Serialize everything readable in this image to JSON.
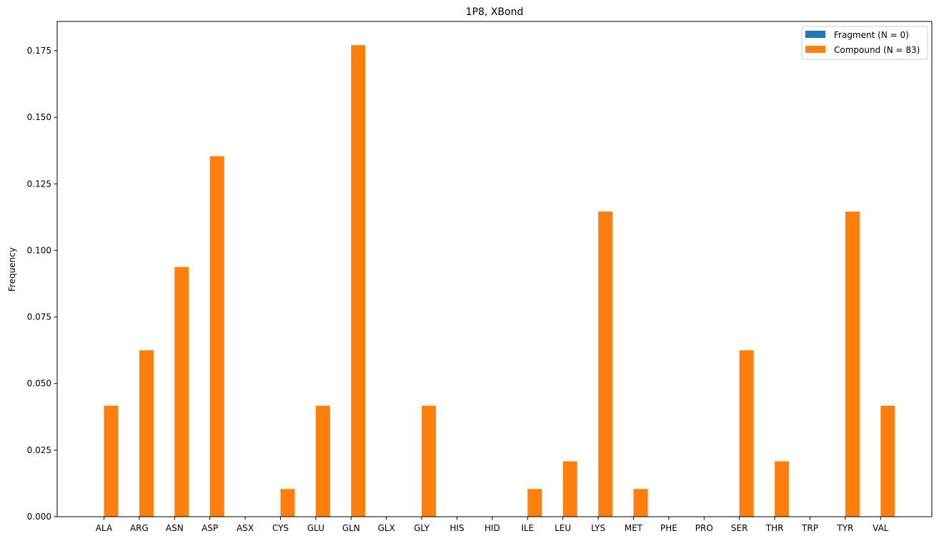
{
  "chart_data": {
    "type": "bar",
    "title": "1P8, XBond",
    "xlabel": "",
    "ylabel": "Frequency",
    "ylim": [
      0,
      0.186
    ],
    "yticks": [
      0.0,
      0.025,
      0.05,
      0.075,
      0.1,
      0.125,
      0.15,
      0.175
    ],
    "ytick_labels": [
      "0.000",
      "0.025",
      "0.050",
      "0.075",
      "0.100",
      "0.125",
      "0.150",
      "0.175"
    ],
    "grid": false,
    "legend_position": "top-right",
    "categories": [
      "ALA",
      "ARG",
      "ASN",
      "ASP",
      "ASX",
      "CYS",
      "GLU",
      "GLN",
      "GLX",
      "GLY",
      "HIS",
      "HID",
      "ILE",
      "LEU",
      "LYS",
      "MET",
      "PHE",
      "PRO",
      "SER",
      "THR",
      "TRP",
      "TYR",
      "VAL"
    ],
    "series": [
      {
        "name": "Fragment (N = 0)",
        "color": "#1f77b4",
        "values": [
          0,
          0,
          0,
          0,
          0,
          0,
          0,
          0,
          0,
          0,
          0,
          0,
          0,
          0,
          0,
          0,
          0,
          0,
          0,
          0,
          0,
          0,
          0
        ]
      },
      {
        "name": "Compound (N = 83)",
        "color": "#ff7f0e",
        "values": [
          0.0417,
          0.0625,
          0.0938,
          0.1354,
          0,
          0.0104,
          0.0417,
          0.1771,
          0,
          0.0417,
          0,
          0,
          0.0104,
          0.0208,
          0.1146,
          0.0104,
          0,
          0,
          0.0625,
          0.0208,
          0,
          0.1146,
          0.0417
        ]
      }
    ]
  }
}
